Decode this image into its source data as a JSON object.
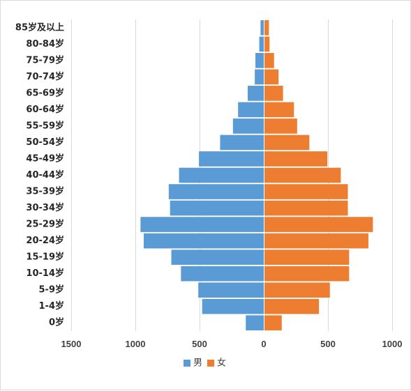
{
  "chart_data": {
    "type": "bar",
    "orientation": "horizontal-population-pyramid",
    "categories": [
      "85岁及以上",
      "80-84岁",
      "75-79岁",
      "70-74岁",
      "65-69岁",
      "60-64岁",
      "55-59岁",
      "50-54岁",
      "45-49岁",
      "40-44岁",
      "35-39岁",
      "30-34岁",
      "25-29岁",
      "20-24岁",
      "15-19岁",
      "10-14岁",
      "5-9岁",
      "1-4岁",
      "0岁"
    ],
    "series": [
      {
        "name": "男",
        "color": "#5b9bd5",
        "values": [
          -25,
          -35,
          -65,
          -70,
          -125,
          -200,
          -240,
          -340,
          -505,
          -660,
          -740,
          -730,
          -960,
          -935,
          -720,
          -645,
          -510,
          -480,
          -140
        ]
      },
      {
        "name": "女",
        "color": "#ed7d31",
        "values": [
          40,
          45,
          80,
          115,
          150,
          235,
          260,
          355,
          495,
          600,
          655,
          655,
          850,
          815,
          665,
          665,
          515,
          430,
          140
        ]
      }
    ],
    "x_ticks": [
      "1500",
      "1000",
      "500",
      "0",
      "500",
      "1000"
    ],
    "xlim": [
      -1500,
      1000
    ],
    "grid": "vertical",
    "legend": "bottom"
  }
}
